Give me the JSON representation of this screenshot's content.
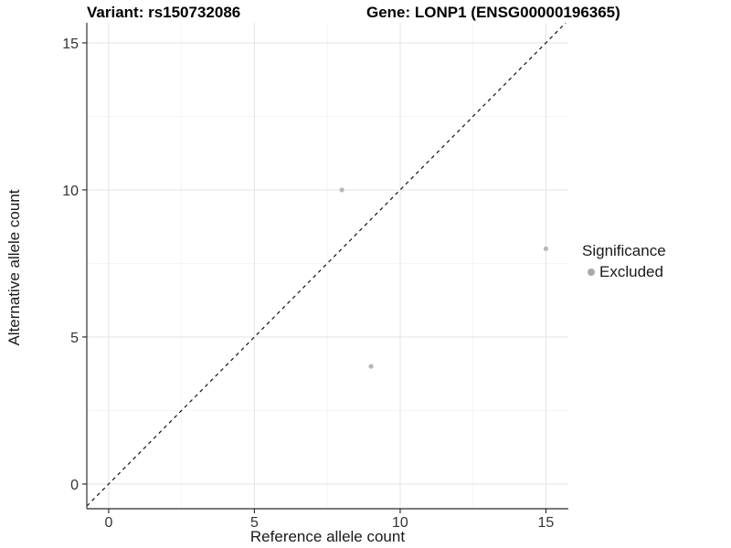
{
  "titles": {
    "variant": "Variant: rs150732086",
    "gene": "Gene: LONP1 (ENSG00000196365)"
  },
  "chart_data": {
    "type": "scatter",
    "title": "Variant: rs150732086   Gene: LONP1 (ENSG00000196365)",
    "xlabel": "Reference allele count",
    "ylabel": "Alternative allele count",
    "xlim": [
      -0.75,
      15.77
    ],
    "ylim": [
      -0.84,
      15.68
    ],
    "x_ticks": [
      0,
      5,
      10,
      15
    ],
    "y_ticks": [
      0,
      5,
      10,
      15
    ],
    "x_minor_ticks": [
      2.5,
      7.5,
      12.5
    ],
    "y_minor_ticks": [
      2.5,
      7.5,
      12.5
    ],
    "grid": true,
    "series": [
      {
        "name": "Excluded",
        "color": "#b6b6b6",
        "points": [
          {
            "x": 8,
            "y": 10
          },
          {
            "x": 15,
            "y": 8
          },
          {
            "x": 9,
            "y": 4
          }
        ]
      }
    ],
    "reference_line": {
      "slope": 1,
      "intercept": 0,
      "linetype": "dashed",
      "color": "#111111"
    },
    "legend": {
      "title": "Significance",
      "position": "right",
      "entries": [
        {
          "label": "Excluded",
          "color": "#a9a9a9"
        }
      ]
    }
  },
  "colors": {
    "background": "#ffffff",
    "grid_major": "#e6e6e6",
    "grid_minor": "#f3f3f3",
    "axis_line": "#4d4d4d",
    "tick_mark": "#333333",
    "tick_label": "#333333",
    "point": "#b6b6b6"
  }
}
